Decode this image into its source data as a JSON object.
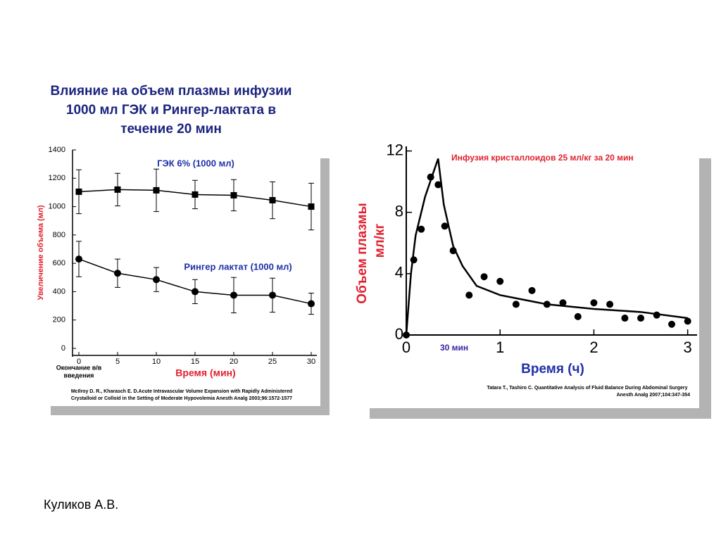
{
  "title": [
    "Влияние на объем плазмы инфузии",
    "1000 мл ГЭК и Рингер-лактата в",
    "течение 20 мин"
  ],
  "author": "Куликов А.В.",
  "chart_data": [
    {
      "type": "line",
      "y_label": "Увеличение объема (мл)",
      "x_label": "Время (мин)",
      "annotation": [
        "Окончание в/в",
        "введения"
      ],
      "source": [
        "McIlroy D. R.,  Kharasch E. D.Acute Intravascular Volume Expansion with Rapidly Administered",
        "Crystalloid or Colloid in  the Setting of Moderate Hypovolemia Anesth Analg 2003;96:1572-1577"
      ],
      "x": [
        0,
        5,
        10,
        15,
        20,
        25,
        30
      ],
      "xlim": [
        0,
        30
      ],
      "xticks": [
        0,
        5,
        10,
        15,
        20,
        25,
        30
      ],
      "ylim": [
        0,
        1400
      ],
      "yticks": [
        0,
        200,
        400,
        600,
        800,
        1000,
        1200,
        1400
      ],
      "series": [
        {
          "name": "ГЭК 6% (1000 мл)",
          "color": "#000000",
          "marker": "square",
          "values": [
            1105,
            1120,
            1115,
            1085,
            1080,
            1045,
            1000
          ],
          "errors": [
            155,
            115,
            150,
            100,
            110,
            130,
            165
          ]
        },
        {
          "name": "Рингер лактат (1000 мл)",
          "color": "#000000",
          "marker": "circle",
          "values": [
            630,
            530,
            485,
            400,
            375,
            375,
            315
          ],
          "errors": [
            125,
            100,
            85,
            85,
            125,
            120,
            75
          ]
        }
      ]
    },
    {
      "type": "scatter",
      "y_label": [
        "Объем плазмы",
        "мл/кг"
      ],
      "x_label": "Время (ч)",
      "annotation": [
        "Инфузия кристаллоидов 25 мл/кг за 20 мин",
        "30 мин"
      ],
      "source": [
        "Tatara T.,  Tashiro C. Quantitative Analysis of Fluid Balance During Abdominal Surgery",
        "Anesth Analg 2007;104:347-354"
      ],
      "xlim": [
        0,
        3.1
      ],
      "xticks": [
        0,
        1,
        2,
        3
      ],
      "ylim": [
        0,
        12.3
      ],
      "yticks": [
        0,
        4,
        8,
        12
      ],
      "series": [
        {
          "style": "points",
          "color": "#000000",
          "x": [
            0,
            0.08,
            0.16,
            0.26,
            0.34,
            0.41,
            0.5,
            0.67,
            0.83,
            1.0,
            1.17,
            1.34,
            1.5,
            1.67,
            1.83,
            2.0,
            2.17,
            2.33,
            2.5,
            2.67,
            2.83,
            3.0
          ],
          "values": [
            0,
            4.9,
            6.9,
            10.3,
            9.8,
            7.1,
            5.5,
            2.6,
            3.8,
            3.5,
            2.0,
            2.9,
            2.0,
            2.1,
            1.2,
            2.1,
            2.0,
            1.1,
            1.1,
            1.3,
            0.7,
            0.9
          ]
        },
        {
          "style": "line",
          "color": "#000000",
          "x": [
            0,
            0.05,
            0.1,
            0.2,
            0.3,
            0.34,
            0.4,
            0.5,
            0.6,
            0.75,
            1,
            1.5,
            2,
            2.5,
            3
          ],
          "values": [
            0,
            4,
            6.5,
            9,
            10.8,
            11.5,
            8.5,
            5.8,
            4.5,
            3.2,
            2.6,
            2.0,
            1.7,
            1.5,
            1.1
          ]
        }
      ]
    }
  ]
}
